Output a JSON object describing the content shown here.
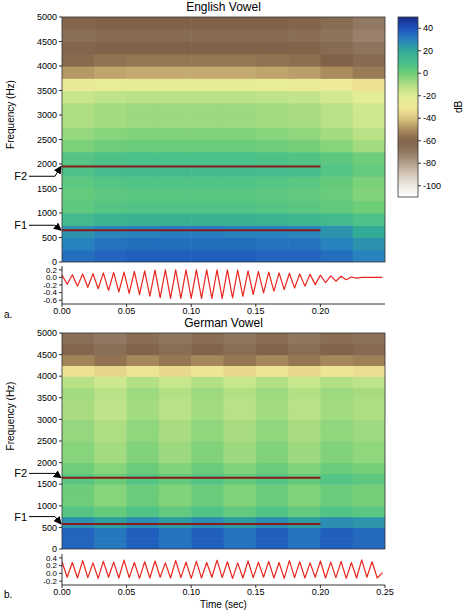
{
  "chart_data": [
    {
      "type": "heatmap",
      "title": "English Vowel",
      "panel_label": "a.",
      "ylabel": "Frequency (Hz)",
      "xlim": [
        0,
        0.25
      ],
      "ylim": [
        0,
        5000
      ],
      "yticks": [
        0,
        500,
        1000,
        1500,
        2000,
        2500,
        3000,
        3500,
        4000,
        4500,
        5000
      ],
      "xticks": [
        {
          "value": 0,
          "label": "0.00"
        },
        0.05,
        {
          "value": 0.1,
          "label": "0.10"
        },
        0.15,
        {
          "value": 0.2,
          "label": "0.20"
        }
      ],
      "cells": {
        "x": [
          0,
          0.025,
          0.05,
          0.075,
          0.1,
          0.125,
          0.15,
          0.175,
          0.2,
          0.225,
          0.25
        ],
        "y": [
          0,
          250,
          500,
          750,
          1000,
          1250,
          1500,
          1750,
          2000,
          2250,
          2500,
          2750,
          3000,
          3250,
          3500,
          3750,
          4000,
          4250,
          4500,
          4750,
          5000
        ],
        "values": [
          [
            34,
            36,
            37,
            37,
            37,
            37,
            36,
            36,
            34,
            30
          ],
          [
            30,
            33,
            34,
            34,
            34,
            34,
            33,
            33,
            30,
            26
          ],
          [
            26,
            29,
            30,
            31,
            31,
            30,
            30,
            29,
            26,
            20
          ],
          [
            12,
            15,
            16,
            16,
            16,
            16,
            15,
            14,
            12,
            8
          ],
          [
            4,
            6,
            7,
            7,
            7,
            7,
            6,
            5,
            3,
            0
          ],
          [
            2,
            4,
            5,
            5,
            5,
            5,
            4,
            3,
            1,
            -3
          ],
          [
            4,
            6,
            7,
            7,
            7,
            7,
            6,
            5,
            2,
            -2
          ],
          [
            8,
            11,
            12,
            12,
            12,
            12,
            11,
            10,
            6,
            2
          ],
          [
            6,
            8,
            9,
            9,
            9,
            9,
            8,
            7,
            4,
            0
          ],
          [
            -2,
            0,
            1,
            1,
            1,
            1,
            0,
            -1,
            -4,
            -8
          ],
          [
            -6,
            -4,
            -3,
            -3,
            -3,
            -3,
            -4,
            -5,
            -8,
            -12
          ],
          [
            -10,
            -8,
            -7,
            -7,
            -7,
            -7,
            -8,
            -9,
            -12,
            -16
          ],
          [
            -10,
            -8,
            -7,
            -7,
            -7,
            -7,
            -8,
            -9,
            -12,
            -16
          ],
          [
            -15,
            -13,
            -12,
            -12,
            -12,
            -12,
            -13,
            -14,
            -17,
            -21
          ],
          [
            -26,
            -24,
            -23,
            -23,
            -23,
            -23,
            -24,
            -25,
            -28,
            -32
          ],
          [
            -48,
            -46,
            -45,
            -45,
            -45,
            -45,
            -46,
            -47,
            -50,
            -54
          ],
          [
            -58,
            -56,
            -55,
            -55,
            -55,
            -55,
            -56,
            -57,
            -60,
            -64
          ],
          [
            -62,
            -60,
            -60,
            -60,
            -60,
            -60,
            -60,
            -61,
            -64,
            -68
          ],
          [
            -66,
            -64,
            -64,
            -64,
            -64,
            -64,
            -64,
            -65,
            -68,
            -72
          ],
          [
            -62,
            -60,
            -60,
            -60,
            -60,
            -60,
            -60,
            -61,
            -64,
            -70
          ]
        ]
      },
      "annotations": [
        {
          "text": "F2",
          "y": 1950,
          "x": [
            0,
            0.2
          ],
          "color": "#8b1a1a"
        },
        {
          "text": "F1",
          "y": 650,
          "x": [
            0,
            0.2
          ],
          "color": "#8b1a1a"
        }
      ],
      "colorbar": {
        "label": "dB",
        "lim": [
          -110,
          50
        ],
        "ticks": [
          40,
          20,
          0,
          -20,
          -40,
          -60,
          -80,
          -100
        ]
      },
      "waveform": {
        "color": "#e8261e",
        "ylim": [
          -0.7,
          0.3
        ],
        "yticks": [
          0.2,
          {
            "value": 0,
            "label": "0.0"
          },
          -0.2,
          -0.4,
          -0.6
        ],
        "x": [
          0,
          0.004,
          0.008,
          0.012,
          0.016,
          0.02,
          0.024,
          0.028,
          0.032,
          0.036,
          0.04,
          0.044,
          0.048,
          0.052,
          0.056,
          0.06,
          0.064,
          0.068,
          0.072,
          0.076,
          0.08,
          0.084,
          0.088,
          0.092,
          0.096,
          0.1,
          0.104,
          0.108,
          0.112,
          0.116,
          0.12,
          0.124,
          0.128,
          0.132,
          0.136,
          0.14,
          0.144,
          0.148,
          0.152,
          0.156,
          0.16,
          0.164,
          0.168,
          0.172,
          0.176,
          0.18,
          0.184,
          0.188,
          0.192,
          0.196,
          0.2,
          0.204,
          0.208,
          0.212,
          0.216,
          0.22,
          0.224,
          0.228,
          0.232,
          0.236,
          0.24,
          0.248
        ],
        "y": [
          0.06,
          -0.18,
          0.07,
          -0.23,
          0.09,
          -0.26,
          0.1,
          -0.3,
          0.12,
          -0.34,
          0.13,
          -0.38,
          0.14,
          -0.42,
          0.16,
          -0.45,
          0.17,
          -0.49,
          0.19,
          -0.53,
          0.2,
          -0.55,
          0.2,
          -0.55,
          0.2,
          -0.55,
          0.2,
          -0.55,
          0.2,
          -0.55,
          0.2,
          -0.55,
          0.2,
          -0.54,
          0.19,
          -0.5,
          0.17,
          -0.45,
          0.16,
          -0.41,
          0.14,
          -0.36,
          0.12,
          -0.32,
          0.11,
          -0.28,
          0.09,
          -0.23,
          0.08,
          -0.19,
          0.06,
          -0.14,
          0.04,
          -0.1,
          0.03,
          -0.06,
          0.01,
          -0.02,
          0,
          0,
          0,
          0
        ]
      }
    },
    {
      "type": "heatmap",
      "title": "German Vowel",
      "panel_label": "b.",
      "ylabel": "Frequency (Hz)",
      "xlabel": "Time (sec)",
      "xlim": [
        0,
        0.25
      ],
      "ylim": [
        0,
        5000
      ],
      "yticks": [
        0,
        500,
        1000,
        1500,
        2000,
        2500,
        3000,
        3500,
        4000,
        4500,
        5000
      ],
      "xticks": [
        {
          "value": 0,
          "label": "0.00"
        },
        0.05,
        {
          "value": 0.1,
          "label": "0.10"
        },
        0.15,
        {
          "value": 0.2,
          "label": "0.20"
        },
        0.25
      ],
      "cells": {
        "x": [
          0,
          0.025,
          0.05,
          0.075,
          0.1,
          0.125,
          0.15,
          0.175,
          0.2,
          0.225,
          0.25
        ],
        "y": [
          0,
          250,
          500,
          750,
          1000,
          1250,
          1500,
          1750,
          2000,
          2250,
          2500,
          2750,
          3000,
          3250,
          3500,
          3750,
          4000,
          4250,
          4500,
          4750,
          5000
        ],
        "values": [
          [
            36,
            32,
            37,
            33,
            37,
            33,
            37,
            33,
            37,
            35
          ],
          [
            36,
            32,
            37,
            33,
            37,
            33,
            37,
            33,
            37,
            35
          ],
          [
            26,
            22,
            27,
            23,
            27,
            23,
            27,
            23,
            27,
            25
          ],
          [
            6,
            2,
            7,
            3,
            7,
            3,
            7,
            3,
            7,
            5
          ],
          [
            0,
            -4,
            1,
            -3,
            1,
            -3,
            1,
            -3,
            1,
            -1
          ],
          [
            0,
            -4,
            1,
            -3,
            1,
            -3,
            1,
            -3,
            1,
            -1
          ],
          [
            5,
            1,
            6,
            2,
            6,
            2,
            6,
            2,
            6,
            4
          ],
          [
            0,
            -4,
            1,
            -3,
            1,
            -3,
            1,
            -3,
            1,
            -1
          ],
          [
            -4,
            -8,
            -3,
            -7,
            -3,
            -7,
            -3,
            -7,
            -3,
            -5
          ],
          [
            -4,
            -8,
            -3,
            -7,
            -3,
            -7,
            -3,
            -7,
            -3,
            -5
          ],
          [
            -6,
            -10,
            -5,
            -9,
            -5,
            -9,
            -5,
            -9,
            -5,
            -7
          ],
          [
            -6,
            -10,
            -5,
            -9,
            -5,
            -9,
            -5,
            -9,
            -5,
            -7
          ],
          [
            -9,
            -13,
            -8,
            -12,
            -8,
            -12,
            -8,
            -12,
            -8,
            -10
          ],
          [
            -9,
            -13,
            -8,
            -12,
            -8,
            -12,
            -8,
            -12,
            -8,
            -10
          ],
          [
            -8,
            -12,
            -7,
            -11,
            -7,
            -11,
            -7,
            -11,
            -7,
            -9
          ],
          [
            -12,
            -16,
            -11,
            -15,
            -11,
            -15,
            -11,
            -15,
            -11,
            -13
          ],
          [
            -32,
            -36,
            -31,
            -35,
            -31,
            -35,
            -31,
            -35,
            -31,
            -33
          ],
          [
            -52,
            -56,
            -51,
            -55,
            -51,
            -55,
            -51,
            -55,
            -51,
            -53
          ],
          [
            -62,
            -66,
            -61,
            -65,
            -61,
            -65,
            -61,
            -65,
            -61,
            -63
          ],
          [
            -66,
            -70,
            -65,
            -69,
            -65,
            -69,
            -65,
            -69,
            -65,
            -67
          ]
        ]
      },
      "annotations": [
        {
          "text": "F2",
          "y": 1650,
          "x": [
            0,
            0.2
          ],
          "color": "#8b1a1a"
        },
        {
          "text": "F1",
          "y": 580,
          "x": [
            0,
            0.2
          ],
          "color": "#8b1a1a"
        }
      ],
      "waveform": {
        "color": "#e8261e",
        "ylim": [
          -0.3,
          0.5
        ],
        "yticks": [
          0.4,
          0.2,
          {
            "value": 0,
            "label": "0.0"
          },
          -0.2
        ],
        "x": [
          0,
          0.004,
          0.008,
          0.012,
          0.016,
          0.02,
          0.024,
          0.028,
          0.032,
          0.036,
          0.04,
          0.044,
          0.048,
          0.052,
          0.056,
          0.06,
          0.064,
          0.068,
          0.072,
          0.076,
          0.08,
          0.084,
          0.088,
          0.092,
          0.096,
          0.1,
          0.104,
          0.108,
          0.112,
          0.116,
          0.12,
          0.124,
          0.128,
          0.132,
          0.136,
          0.14,
          0.144,
          0.148,
          0.152,
          0.156,
          0.16,
          0.164,
          0.168,
          0.172,
          0.176,
          0.18,
          0.184,
          0.188,
          0.192,
          0.196,
          0.2,
          0.204,
          0.208,
          0.212,
          0.216,
          0.22,
          0.224,
          0.228,
          0.232,
          0.236,
          0.24,
          0.244,
          0.248
        ],
        "y": [
          0.3,
          -0.1,
          0.28,
          -0.12,
          0.33,
          -0.11,
          0.27,
          -0.13,
          0.31,
          -0.1,
          0.29,
          -0.12,
          0.34,
          -0.11,
          0.28,
          -0.13,
          0.3,
          -0.12,
          0.32,
          -0.1,
          0.27,
          -0.12,
          0.33,
          -0.11,
          0.29,
          -0.13,
          0.31,
          -0.12,
          0.28,
          -0.1,
          0.34,
          -0.11,
          0.3,
          -0.13,
          0.27,
          -0.12,
          0.32,
          -0.11,
          0.29,
          -0.1,
          0.31,
          -0.12,
          0.28,
          -0.13,
          0.33,
          -0.11,
          0.3,
          -0.12,
          0.27,
          -0.1,
          0.32,
          -0.12,
          0.29,
          -0.11,
          0.31,
          -0.13,
          0.28,
          -0.12,
          0.35,
          -0.1,
          0.3,
          -0.12,
          0.02
        ]
      }
    }
  ]
}
